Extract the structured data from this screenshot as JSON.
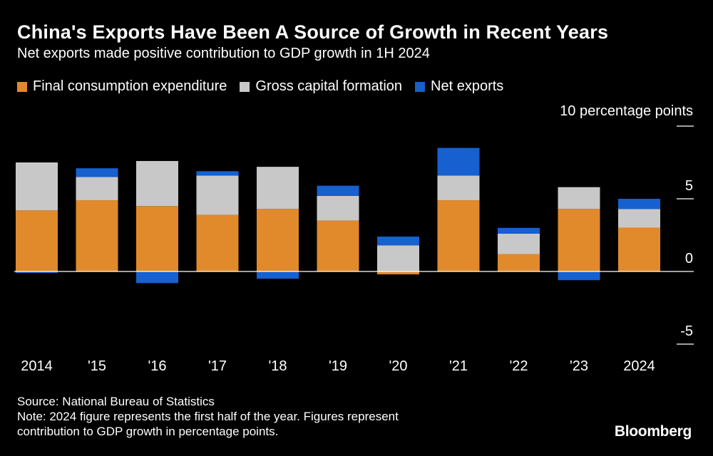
{
  "header": {
    "title": "China's Exports Have Been A Source of Growth in Recent Years",
    "subtitle": "Net exports made positive contribution to GDP growth in 1H 2024"
  },
  "unit_label": "10 percentage points",
  "footer": {
    "source": "Source: National Bureau of Statistics",
    "note_line1": "Note: 2024 figure represents the first half of the year. Figures represent",
    "note_line2": "contribution to GDP growth in percentage points."
  },
  "brand": "Bloomberg",
  "colors": {
    "consumption": "#e08a2c",
    "capital": "#c8c8c8",
    "net_exports": "#1660d0",
    "background": "#000000",
    "text": "#ffffff"
  },
  "chart_data": {
    "type": "bar",
    "stacked": true,
    "categories": [
      "2014",
      "'15",
      "'16",
      "'17",
      "'18",
      "'19",
      "'20",
      "'21",
      "'22",
      "'23",
      "2024"
    ],
    "series": [
      {
        "name": "Final consumption expenditure",
        "values": [
          4.2,
          4.9,
          4.5,
          3.9,
          4.3,
          3.5,
          -0.2,
          4.9,
          1.2,
          4.3,
          3.0
        ]
      },
      {
        "name": "Gross capital formation",
        "values": [
          3.3,
          1.6,
          3.1,
          2.7,
          2.9,
          1.7,
          1.8,
          1.7,
          1.4,
          1.5,
          1.3
        ]
      },
      {
        "name": "Net exports",
        "values": [
          -0.1,
          0.6,
          -0.8,
          0.3,
          -0.5,
          0.7,
          0.6,
          1.9,
          0.4,
          -0.6,
          0.7
        ]
      }
    ],
    "ylim": [
      -5,
      10
    ],
    "yticks": [
      10,
      5,
      0,
      -5
    ],
    "ytick_labels": [
      "10 percentage points",
      "5",
      "0",
      "-5"
    ],
    "legend_position": "top-left",
    "grid": false
  }
}
